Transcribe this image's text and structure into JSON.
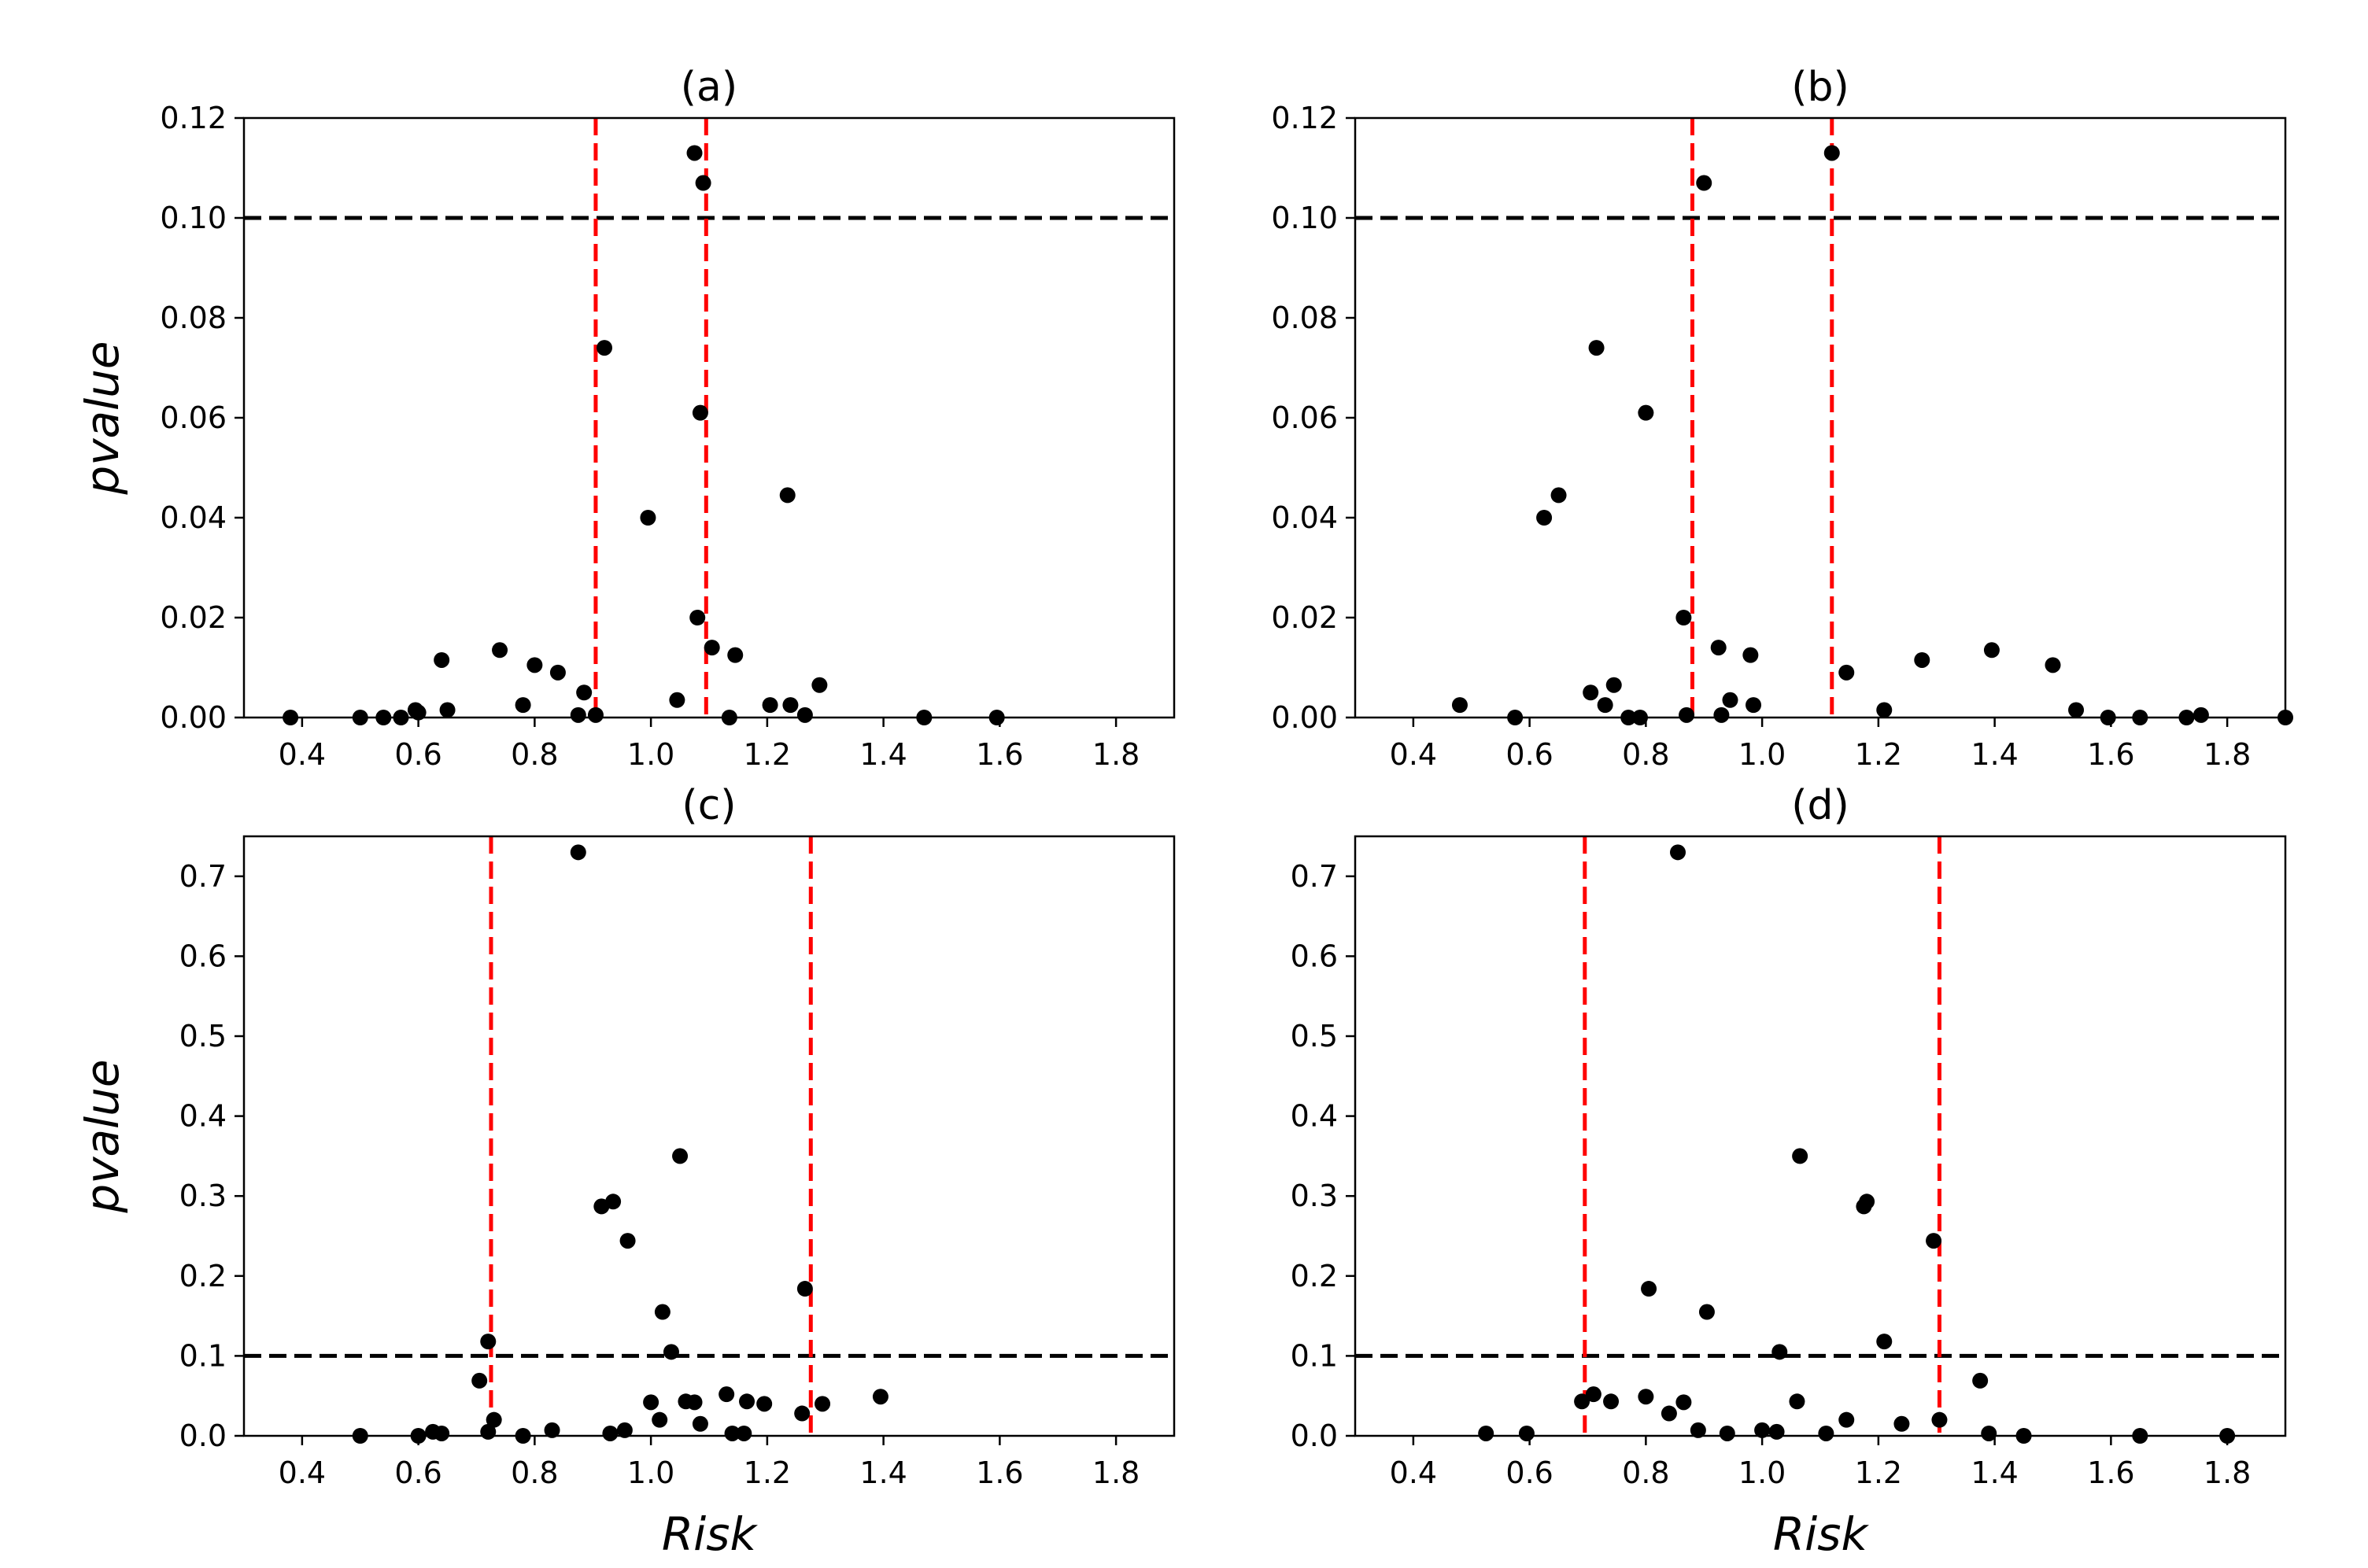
{
  "chart_data": [
    {
      "type": "scatter",
      "title": "(a)",
      "xlabel": "",
      "ylabel": "pvalue",
      "xlim": [
        0.3,
        1.9
      ],
      "ylim": [
        0,
        0.12
      ],
      "xticks": [
        "0.4",
        "0.6",
        "0.8",
        "1.0",
        "1.2",
        "1.4",
        "1.6",
        "1.8"
      ],
      "yticks": [
        "0.00",
        "0.02",
        "0.04",
        "0.06",
        "0.08",
        "0.10",
        "0.12"
      ],
      "hline": 0.1,
      "vlines": [
        0.905,
        1.095
      ],
      "points": [
        [
          0.38,
          0.0
        ],
        [
          0.5,
          0.0
        ],
        [
          0.54,
          0.0
        ],
        [
          0.57,
          0.0
        ],
        [
          0.595,
          0.0015
        ],
        [
          0.6,
          0.001
        ],
        [
          0.64,
          0.0115
        ],
        [
          0.65,
          0.0015
        ],
        [
          0.74,
          0.0135
        ],
        [
          0.78,
          0.0025
        ],
        [
          0.8,
          0.0105
        ],
        [
          0.84,
          0.009
        ],
        [
          0.875,
          0.0005
        ],
        [
          0.885,
          0.005
        ],
        [
          0.905,
          0.0005
        ],
        [
          0.92,
          0.074
        ],
        [
          0.995,
          0.04
        ],
        [
          1.045,
          0.0035
        ],
        [
          1.075,
          0.113
        ],
        [
          1.08,
          0.02
        ],
        [
          1.085,
          0.061
        ],
        [
          1.09,
          0.107
        ],
        [
          1.105,
          0.014
        ],
        [
          1.135,
          0.0
        ],
        [
          1.145,
          0.0125
        ],
        [
          1.205,
          0.0025
        ],
        [
          1.235,
          0.0445
        ],
        [
          1.24,
          0.0025
        ],
        [
          1.265,
          0.0005
        ],
        [
          1.29,
          0.0065
        ],
        [
          1.47,
          0.0
        ],
        [
          1.595,
          0.0
        ]
      ]
    },
    {
      "type": "scatter",
      "title": "(b)",
      "xlabel": "",
      "ylabel": "",
      "xlim": [
        0.3,
        1.9
      ],
      "ylim": [
        0,
        0.12
      ],
      "xticks": [
        "0.4",
        "0.6",
        "0.8",
        "1.0",
        "1.2",
        "1.4",
        "1.6",
        "1.8"
      ],
      "yticks": [
        "0.00",
        "0.02",
        "0.04",
        "0.06",
        "0.08",
        "0.10",
        "0.12"
      ],
      "hline": 0.1,
      "vlines": [
        0.88,
        1.12
      ],
      "points": [
        [
          0.48,
          0.0025
        ],
        [
          0.575,
          0.0
        ],
        [
          0.625,
          0.04
        ],
        [
          0.65,
          0.0445
        ],
        [
          0.705,
          0.005
        ],
        [
          0.715,
          0.074
        ],
        [
          0.73,
          0.0025
        ],
        [
          0.745,
          0.0065
        ],
        [
          0.77,
          0.0
        ],
        [
          0.79,
          0.0
        ],
        [
          0.8,
          0.061
        ],
        [
          0.865,
          0.02
        ],
        [
          0.87,
          0.0005
        ],
        [
          0.9,
          0.107
        ],
        [
          0.925,
          0.014
        ],
        [
          0.93,
          0.0005
        ],
        [
          0.945,
          0.0035
        ],
        [
          0.98,
          0.0125
        ],
        [
          0.985,
          0.0025
        ],
        [
          1.12,
          0.113
        ],
        [
          1.145,
          0.009
        ],
        [
          1.21,
          0.0015
        ],
        [
          1.275,
          0.0115
        ],
        [
          1.395,
          0.0135
        ],
        [
          1.5,
          0.0105
        ],
        [
          1.54,
          0.0015
        ],
        [
          1.595,
          0.0
        ],
        [
          1.65,
          0.0
        ],
        [
          1.73,
          0.0
        ],
        [
          1.755,
          0.0005
        ],
        [
          1.9,
          0.0
        ]
      ]
    },
    {
      "type": "scatter",
      "title": "(c)",
      "xlabel": "Risk",
      "ylabel": "pvalue",
      "xlim": [
        0.3,
        1.9
      ],
      "ylim": [
        0,
        0.75
      ],
      "xticks": [
        "0.4",
        "0.6",
        "0.8",
        "1.0",
        "1.2",
        "1.4",
        "1.6",
        "1.8"
      ],
      "yticks": [
        "0.0",
        "0.1",
        "0.2",
        "0.3",
        "0.4",
        "0.5",
        "0.6",
        "0.7"
      ],
      "hline": 0.1,
      "vlines": [
        0.725,
        1.275
      ],
      "points": [
        [
          0.5,
          0.0
        ],
        [
          0.6,
          0.0
        ],
        [
          0.625,
          0.005
        ],
        [
          0.64,
          0.003
        ],
        [
          0.705,
          0.069
        ],
        [
          0.72,
          0.005
        ],
        [
          0.72,
          0.118
        ],
        [
          0.73,
          0.02
        ],
        [
          0.78,
          0.0
        ],
        [
          0.83,
          0.007
        ],
        [
          0.875,
          0.73
        ],
        [
          0.915,
          0.287
        ],
        [
          0.93,
          0.003
        ],
        [
          0.935,
          0.293
        ],
        [
          0.955,
          0.007
        ],
        [
          0.96,
          0.244
        ],
        [
          1.0,
          0.042
        ],
        [
          1.015,
          0.02
        ],
        [
          1.02,
          0.155
        ],
        [
          1.035,
          0.105
        ],
        [
          1.05,
          0.35
        ],
        [
          1.06,
          0.043
        ],
        [
          1.075,
          0.042
        ],
        [
          1.085,
          0.015
        ],
        [
          1.13,
          0.052
        ],
        [
          1.14,
          0.003
        ],
        [
          1.16,
          0.003
        ],
        [
          1.165,
          0.043
        ],
        [
          1.195,
          0.04
        ],
        [
          1.26,
          0.028
        ],
        [
          1.265,
          0.184
        ],
        [
          1.295,
          0.04
        ],
        [
          1.395,
          0.049
        ]
      ]
    },
    {
      "type": "scatter",
      "title": "(d)",
      "xlabel": "Risk",
      "ylabel": "",
      "xlim": [
        0.3,
        1.9
      ],
      "ylim": [
        0,
        0.75
      ],
      "xticks": [
        "0.4",
        "0.6",
        "0.8",
        "1.0",
        "1.2",
        "1.4",
        "1.6",
        "1.8"
      ],
      "yticks": [
        "0.0",
        "0.1",
        "0.2",
        "0.3",
        "0.4",
        "0.5",
        "0.6",
        "0.7"
      ],
      "hline": 0.1,
      "vlines": [
        0.695,
        1.305
      ],
      "points": [
        [
          0.525,
          0.003
        ],
        [
          0.595,
          0.003
        ],
        [
          0.69,
          0.043
        ],
        [
          0.71,
          0.052
        ],
        [
          0.74,
          0.043
        ],
        [
          0.8,
          0.049
        ],
        [
          0.805,
          0.184
        ],
        [
          0.84,
          0.028
        ],
        [
          0.855,
          0.73
        ],
        [
          0.865,
          0.042
        ],
        [
          0.89,
          0.007
        ],
        [
          0.905,
          0.155
        ],
        [
          0.94,
          0.003
        ],
        [
          1.0,
          0.007
        ],
        [
          1.025,
          0.005
        ],
        [
          1.03,
          0.105
        ],
        [
          1.06,
          0.043
        ],
        [
          1.065,
          0.35
        ],
        [
          1.11,
          0.003
        ],
        [
          1.145,
          0.02
        ],
        [
          1.175,
          0.287
        ],
        [
          1.18,
          0.293
        ],
        [
          1.21,
          0.118
        ],
        [
          1.24,
          0.015
        ],
        [
          1.295,
          0.244
        ],
        [
          1.305,
          0.02
        ],
        [
          1.375,
          0.069
        ],
        [
          1.39,
          0.003
        ],
        [
          1.45,
          0.0
        ],
        [
          1.65,
          0.0
        ],
        [
          1.8,
          0.0
        ]
      ]
    }
  ]
}
